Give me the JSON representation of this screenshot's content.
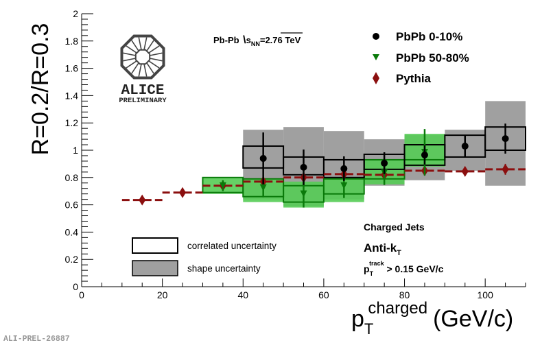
{
  "chart_data": {
    "type": "scatter",
    "title": "",
    "xlabel_main": "p",
    "xlabel_sub": "T",
    "xlabel_sup": "charged",
    "xlabel_unit": "(GeV/c)",
    "ylabel": "R=0.2/R=0.3",
    "xlim": [
      0,
      110
    ],
    "ylim": [
      0,
      2
    ],
    "x_ticks": [
      0,
      20,
      40,
      60,
      80,
      100
    ],
    "x_tick_labels": [
      "0",
      "20",
      "40",
      "60",
      "80",
      "100"
    ],
    "y_ticks": [
      0.2,
      0.4,
      0.6,
      0.8,
      1,
      1.2,
      1.4,
      1.6,
      1.8,
      2
    ],
    "y_tick_labels": [
      "0.2",
      "0.4",
      "0.6",
      "0.8",
      "1",
      "1.2",
      "1.4",
      "1.6",
      "1.8",
      "2"
    ],
    "origin_labels": {
      "x": "0",
      "y": "0"
    },
    "colors": {
      "pbpb_central": "#000000",
      "pbpb_peripheral": "#0a7a0a",
      "peripheral_fill": "#55cc55",
      "pythia": "#8b0f0f",
      "shape_fill": "#a0a0a0"
    },
    "series": [
      {
        "name": "PbPb 0-10%",
        "marker": "circle",
        "x": [
          45,
          55,
          65,
          75,
          85,
          95,
          105
        ],
        "y": [
          0.94,
          0.875,
          0.865,
          0.905,
          0.965,
          1.03,
          1.085
        ],
        "err": [
          0.19,
          0.13,
          0.09,
          0.08,
          0.07,
          0.08,
          0.11
        ],
        "correlated_box": [
          [
            40,
            50,
            0.87,
            1.03
          ],
          [
            50,
            60,
            0.82,
            0.95
          ],
          [
            60,
            70,
            0.8,
            0.93
          ],
          [
            70,
            80,
            0.86,
            0.97
          ],
          [
            80,
            90,
            0.89,
            1.04
          ],
          [
            90,
            100,
            0.95,
            1.11
          ],
          [
            100,
            110,
            1.0,
            1.17
          ]
        ],
        "shape_box": [
          [
            40,
            50,
            0.64,
            1.15
          ],
          [
            50,
            60,
            0.59,
            1.17
          ],
          [
            60,
            70,
            0.64,
            1.14
          ],
          [
            70,
            80,
            0.74,
            1.08
          ],
          [
            80,
            90,
            0.78,
            1.11
          ],
          [
            90,
            100,
            0.85,
            1.15
          ],
          [
            100,
            110,
            0.74,
            1.36
          ]
        ]
      },
      {
        "name": "PbPb 50-80%",
        "marker": "triangle-down",
        "x": [
          35,
          45,
          55,
          65,
          75,
          85
        ],
        "y": [
          0.74,
          0.725,
          0.68,
          0.74,
          0.835,
          0.985
        ],
        "err": [
          0.04,
          0.07,
          0.1,
          0.09,
          0.09,
          0.17
        ],
        "correlated_box": [
          [
            30,
            40,
            0.69,
            0.8
          ],
          [
            40,
            50,
            0.66,
            0.79
          ],
          [
            50,
            60,
            0.62,
            0.74
          ],
          [
            60,
            70,
            0.68,
            0.79
          ],
          [
            70,
            80,
            0.79,
            0.93
          ],
          [
            80,
            90,
            0.93,
            1.04
          ]
        ],
        "shape_box": [
          [
            30,
            40,
            0.68,
            0.8
          ],
          [
            40,
            50,
            0.62,
            0.79
          ],
          [
            50,
            60,
            0.58,
            0.77
          ],
          [
            60,
            70,
            0.62,
            0.8
          ],
          [
            70,
            80,
            0.75,
            0.93
          ],
          [
            80,
            90,
            0.88,
            1.12
          ]
        ]
      },
      {
        "name": "Pythia",
        "marker": "diamond",
        "x": [
          15,
          25,
          35,
          45,
          55,
          65,
          75,
          85,
          95,
          105
        ],
        "y": [
          0.635,
          0.69,
          0.74,
          0.77,
          0.8,
          0.825,
          0.82,
          0.85,
          0.845,
          0.86
        ],
        "err": [
          0.01,
          0.01,
          0.01,
          0.02,
          0.02,
          0.02,
          0.02,
          0.02,
          0.02,
          0.04
        ],
        "bin_halfwidth": 5
      }
    ],
    "legend": {
      "placement": "top-right",
      "entries": [
        "PbPb 0-10%",
        "PbPb 50-80%",
        "Pythia"
      ]
    },
    "uncertainty_legend": {
      "placement": "bottom-left",
      "correlated": "correlated uncertainty",
      "shape": "shape uncertainty"
    },
    "annotations": {
      "system_prefix": "Pb-Pb ",
      "system_sqrt_s": "s",
      "system_sqrt_sub": "NN",
      "system_energy": "=2.76 TeV",
      "charged_jets": "Charged Jets",
      "algorithm_main": "Anti-k",
      "algorithm_sub": "T",
      "cut_main": "p",
      "cut_sub": "T",
      "cut_sup": "track",
      "cut_value": " > 0.15 GeV/c"
    },
    "logo": {
      "name": "ALICE",
      "tag": "PRELIMINARY"
    },
    "figure_id": "ALI-PREL-26887"
  }
}
